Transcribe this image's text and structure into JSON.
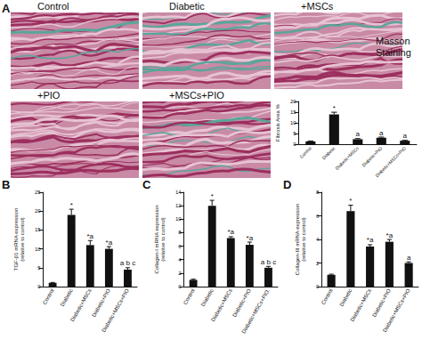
{
  "figure": {
    "panel": "A",
    "side_label": "Masson Staining",
    "images": [
      "Control",
      "Diabetic",
      "+MSCs",
      "+PIO",
      "+MSCs+PIO"
    ]
  },
  "chart_data": [
    {
      "type": "bar",
      "ylabel": "Fibrosis Area %",
      "categories": [
        "Control",
        "Diabetic",
        "Diabetic+MSCs",
        "Diabetic+PIO",
        "Diabetic+MSCs+PIO"
      ],
      "values": [
        1.5,
        14,
        2.5,
        3.2,
        1.8
      ],
      "errors": [
        0.2,
        1.0,
        0.3,
        0.3,
        0.2
      ],
      "annotations": [
        null,
        "*",
        "a",
        "a",
        "a"
      ],
      "ylim": [
        0,
        20
      ],
      "yticks": [
        0,
        5,
        10,
        15,
        20
      ],
      "color": "#111111",
      "grid": false
    },
    {
      "type": "bar",
      "panel": "B",
      "ylabel": "TGF-β1 mRNA expression\n(relative to control)",
      "categories": [
        "Control",
        "Diabetic",
        "Diabetic+MSCs",
        "Diabetic+PIO",
        "Diabetic+MSCs+PIO"
      ],
      "values": [
        1,
        19,
        11,
        10,
        4.5
      ],
      "errors": [
        0.1,
        1.5,
        1.2,
        0.6,
        0.5
      ],
      "annotations": [
        null,
        "*",
        "*a",
        "*a",
        "a b c"
      ],
      "ylim": [
        0,
        25
      ],
      "yticks": [
        0,
        5,
        10,
        15,
        20,
        25
      ],
      "color": "#111111",
      "grid": false
    },
    {
      "type": "bar",
      "panel": "C",
      "ylabel": "Collagen-I mRNA expression\n(relative to control)",
      "categories": [
        "Control",
        "Diabetic",
        "Diabetic+MSCs",
        "Diabetic+PIO",
        "Diabetic+MSCs+PIO."
      ],
      "values": [
        1,
        12,
        7.2,
        6.2,
        2.8
      ],
      "errors": [
        0.1,
        0.8,
        0.2,
        0.4,
        0.2
      ],
      "annotations": [
        null,
        "*",
        "*a",
        "*a",
        "a b c"
      ],
      "ylim": [
        0,
        14
      ],
      "yticks": [
        0,
        2,
        4,
        6,
        8,
        10,
        12,
        14
      ],
      "color": "#111111",
      "grid": false
    },
    {
      "type": "bar",
      "panel": "D",
      "ylabel": "Collagen-III mRNA expression\n(relative to control)",
      "categories": [
        "Control",
        "Diabetic",
        "Diabetic+MSCs",
        "Diabetic+PIO",
        "Diabetic+MSCs+PIO"
      ],
      "values": [
        1,
        6.4,
        3.4,
        3.8,
        2.0
      ],
      "errors": [
        0.05,
        0.5,
        0.15,
        0.2,
        0.1
      ],
      "annotations": [
        null,
        "*",
        "*a",
        "*a",
        "a"
      ],
      "ylim": [
        0,
        8
      ],
      "yticks": [
        0,
        2,
        4,
        6,
        8
      ],
      "color": "#111111",
      "grid": false
    }
  ]
}
